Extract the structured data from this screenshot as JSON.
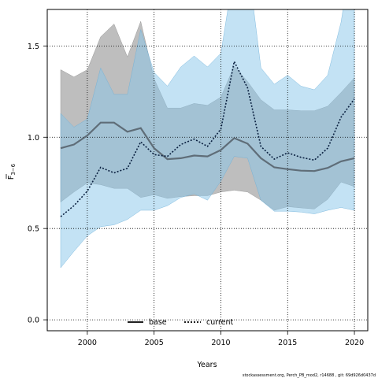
{
  "chart_data": {
    "type": "line",
    "xlabel": "Years",
    "ylabel": "F",
    "ylabel_sub": "3−6",
    "xlim": [
      1997,
      2021
    ],
    "ylim": [
      -0.06,
      1.7
    ],
    "xticks": [
      2000,
      2005,
      2010,
      2015,
      2020
    ],
    "yticks": [
      0.0,
      0.5,
      1.0,
      1.5
    ],
    "ytick_labels": [
      "0.0",
      "0.5",
      "1.0",
      "1.5"
    ],
    "grid": true,
    "legend_position": "bottom-center",
    "footer": "stockassessment.org, Perch_PB_mod2, r14688 , git: 69d926d0437d",
    "x": [
      1998,
      1999,
      2000,
      2001,
      2002,
      2003,
      2004,
      2005,
      2006,
      2007,
      2008,
      2009,
      2010,
      2011,
      2012,
      2013,
      2014,
      2015,
      2016,
      2017,
      2018,
      2019,
      2020
    ],
    "series": [
      {
        "name": "base",
        "color": "#5f6d78",
        "band_color": "#a8a8a8",
        "line_style": "solid",
        "values": [
          0.94,
          0.96,
          1.01,
          1.08,
          1.08,
          1.03,
          1.05,
          0.94,
          0.88,
          0.885,
          0.9,
          0.895,
          0.93,
          0.995,
          0.965,
          0.885,
          0.835,
          0.825,
          0.817,
          0.815,
          0.832,
          0.868,
          0.885
        ],
        "lower": [
          0.645,
          0.7,
          0.75,
          0.74,
          0.72,
          0.72,
          0.67,
          0.685,
          0.665,
          0.675,
          0.68,
          0.68,
          0.7,
          0.71,
          0.7,
          0.655,
          0.6,
          0.62,
          0.613,
          0.607,
          0.66,
          0.755,
          0.73
        ],
        "upper": [
          1.37,
          1.33,
          1.37,
          1.55,
          1.62,
          1.44,
          1.635,
          1.32,
          1.16,
          1.16,
          1.185,
          1.175,
          1.22,
          1.39,
          1.305,
          1.205,
          1.15,
          1.15,
          1.145,
          1.145,
          1.17,
          1.245,
          1.325
        ]
      },
      {
        "name": "current",
        "color": "#0a2040",
        "band_color": "#87c6ea",
        "line_style": "dotted",
        "values": [
          0.565,
          0.625,
          0.705,
          0.835,
          0.805,
          0.83,
          0.975,
          0.905,
          0.895,
          0.96,
          0.99,
          0.95,
          1.045,
          1.415,
          1.27,
          0.95,
          0.88,
          0.915,
          0.89,
          0.875,
          0.94,
          1.11,
          1.21
        ],
        "lower": [
          0.285,
          0.375,
          0.46,
          0.51,
          0.52,
          0.55,
          0.6,
          0.6,
          0.625,
          0.67,
          0.69,
          0.655,
          0.76,
          0.895,
          0.885,
          0.655,
          0.595,
          0.595,
          0.59,
          0.58,
          0.6,
          0.615,
          0.6
        ],
        "upper": [
          1.13,
          1.055,
          1.1,
          1.38,
          1.235,
          1.235,
          1.59,
          1.355,
          1.28,
          1.385,
          1.445,
          1.385,
          1.46,
          1.92,
          1.97,
          1.38,
          1.29,
          1.34,
          1.28,
          1.26,
          1.34,
          1.63,
          2.1
        ]
      }
    ]
  }
}
